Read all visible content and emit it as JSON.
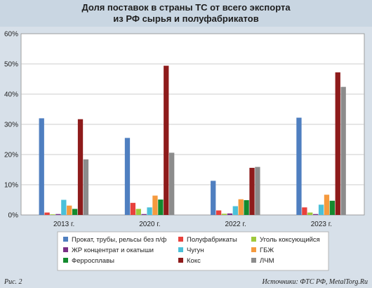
{
  "chart_data": {
    "type": "bar",
    "title": "Доля поставок в страны ТС от всего экспорта\nиз РФ сырья и полуфабрикатов",
    "categories": [
      "2013 г.",
      "2020 г.",
      "2022 г.",
      "2023 г."
    ],
    "ylim": [
      0,
      60
    ],
    "yticks": [
      "0%",
      "10%",
      "20%",
      "30%",
      "40%",
      "50%",
      "60%"
    ],
    "grid": true,
    "legend_position": "bottom",
    "series": [
      {
        "name": "Прокат, трубы, рельсы без п/ф",
        "color": "#4f7fc0",
        "values": [
          32.0,
          25.5,
          11.3,
          32.2
        ]
      },
      {
        "name": "Полуфабрикаты",
        "color": "#e8413c",
        "values": [
          0.8,
          4.0,
          1.5,
          2.5
        ]
      },
      {
        "name": "Уголь коксующийся",
        "color": "#9fc93c",
        "values": [
          0.2,
          2.0,
          0.4,
          0.8
        ]
      },
      {
        "name": "ЖР концентрат и окатыши",
        "color": "#7a2f86",
        "values": [
          0.3,
          0.3,
          0.5,
          0.3
        ]
      },
      {
        "name": "Чугун",
        "color": "#4bc0d9",
        "values": [
          5.0,
          2.5,
          2.9,
          3.4
        ]
      },
      {
        "name": "ГБЖ",
        "color": "#f59a3e",
        "values": [
          3.1,
          6.4,
          5.2,
          6.7
        ]
      },
      {
        "name": "Ферросплавы",
        "color": "#138a2e",
        "values": [
          2.0,
          5.1,
          4.9,
          4.7
        ]
      },
      {
        "name": "Кокс",
        "color": "#8e1b1b",
        "values": [
          31.7,
          49.4,
          15.6,
          47.2
        ]
      },
      {
        "name": "ЛЧМ",
        "color": "#8c8c8c",
        "values": [
          18.4,
          20.6,
          15.9,
          42.4
        ]
      }
    ]
  },
  "footer": {
    "figure_label": "Рис. 2",
    "source": "Источники: ФТС РФ, MetalTorg.Ru"
  }
}
